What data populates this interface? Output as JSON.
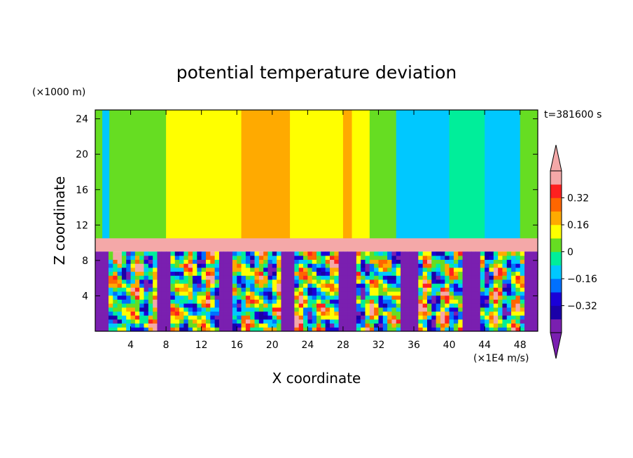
{
  "chart_data": {
    "type": "heatmap",
    "title": "potential temperature deviation",
    "xlabel": "X coordinate",
    "ylabel": "Z coordinate",
    "x_unit": "(×1E4 m/s)",
    "y_unit": "(×1000 m)",
    "time_label": "t=381600 s",
    "xlim": [
      0,
      50
    ],
    "ylim": [
      0,
      25
    ],
    "x_ticks": [
      4,
      8,
      12,
      16,
      20,
      24,
      28,
      32,
      36,
      40,
      44,
      48
    ],
    "y_ticks": [
      4,
      8,
      12,
      16,
      20,
      24
    ],
    "x_tick_labels": [
      "4",
      "8",
      "12",
      "16",
      "20",
      "24",
      "28",
      "32",
      "36",
      "40",
      "44",
      "48"
    ],
    "y_tick_labels": [
      "4",
      "8",
      "12",
      "16",
      "20",
      "24"
    ],
    "colorbar": {
      "levels": [
        -0.48,
        -0.4,
        -0.32,
        -0.24,
        -0.16,
        -0.08,
        0,
        0.08,
        0.16,
        0.24,
        0.32,
        0.4
      ],
      "colors": [
        "#7a1fb0",
        "#1a00a8",
        "#1a00d8",
        "#0070ff",
        "#00c8ff",
        "#00ee9a",
        "#66dd22",
        "#ffff00",
        "#ffaa00",
        "#ff6600",
        "#ff2020",
        "#f4a8a8"
      ],
      "labeled_ticks": [
        "0.32",
        "0.16",
        "0",
        "−0.16",
        "−0.32"
      ],
      "labeled_values": [
        0.32,
        0.16,
        0,
        -0.16,
        -0.32
      ],
      "extend": "both"
    },
    "regions": {
      "upper_layer_z": [
        10.5,
        25
      ],
      "inversion_band_z": [
        9,
        10.5
      ],
      "turbulent_layer_z": [
        0,
        9
      ]
    },
    "upper_layer_columns": [
      {
        "x": [
          0,
          0.8
        ],
        "value": 0
      },
      {
        "x": [
          0.8,
          1.6
        ],
        "value": -0.12
      },
      {
        "x": [
          1.6,
          8
        ],
        "value": 0
      },
      {
        "x": [
          8,
          14.5
        ],
        "value": 0.08
      },
      {
        "x": [
          14.5,
          16.5
        ],
        "value": 0.12
      },
      {
        "x": [
          16.5,
          22
        ],
        "value": 0.2
      },
      {
        "x": [
          22,
          28
        ],
        "value": 0.12
      },
      {
        "x": [
          28,
          29
        ],
        "value": 0.2
      },
      {
        "x": [
          29,
          31
        ],
        "value": 0.12
      },
      {
        "x": [
          31,
          34
        ],
        "value": 0.06
      },
      {
        "x": [
          34,
          40
        ],
        "value": -0.12
      },
      {
        "x": [
          40,
          44
        ],
        "value": -0.06
      },
      {
        "x": [
          44,
          48
        ],
        "value": -0.12
      },
      {
        "x": [
          48,
          50
        ],
        "value": 0
      }
    ]
  }
}
